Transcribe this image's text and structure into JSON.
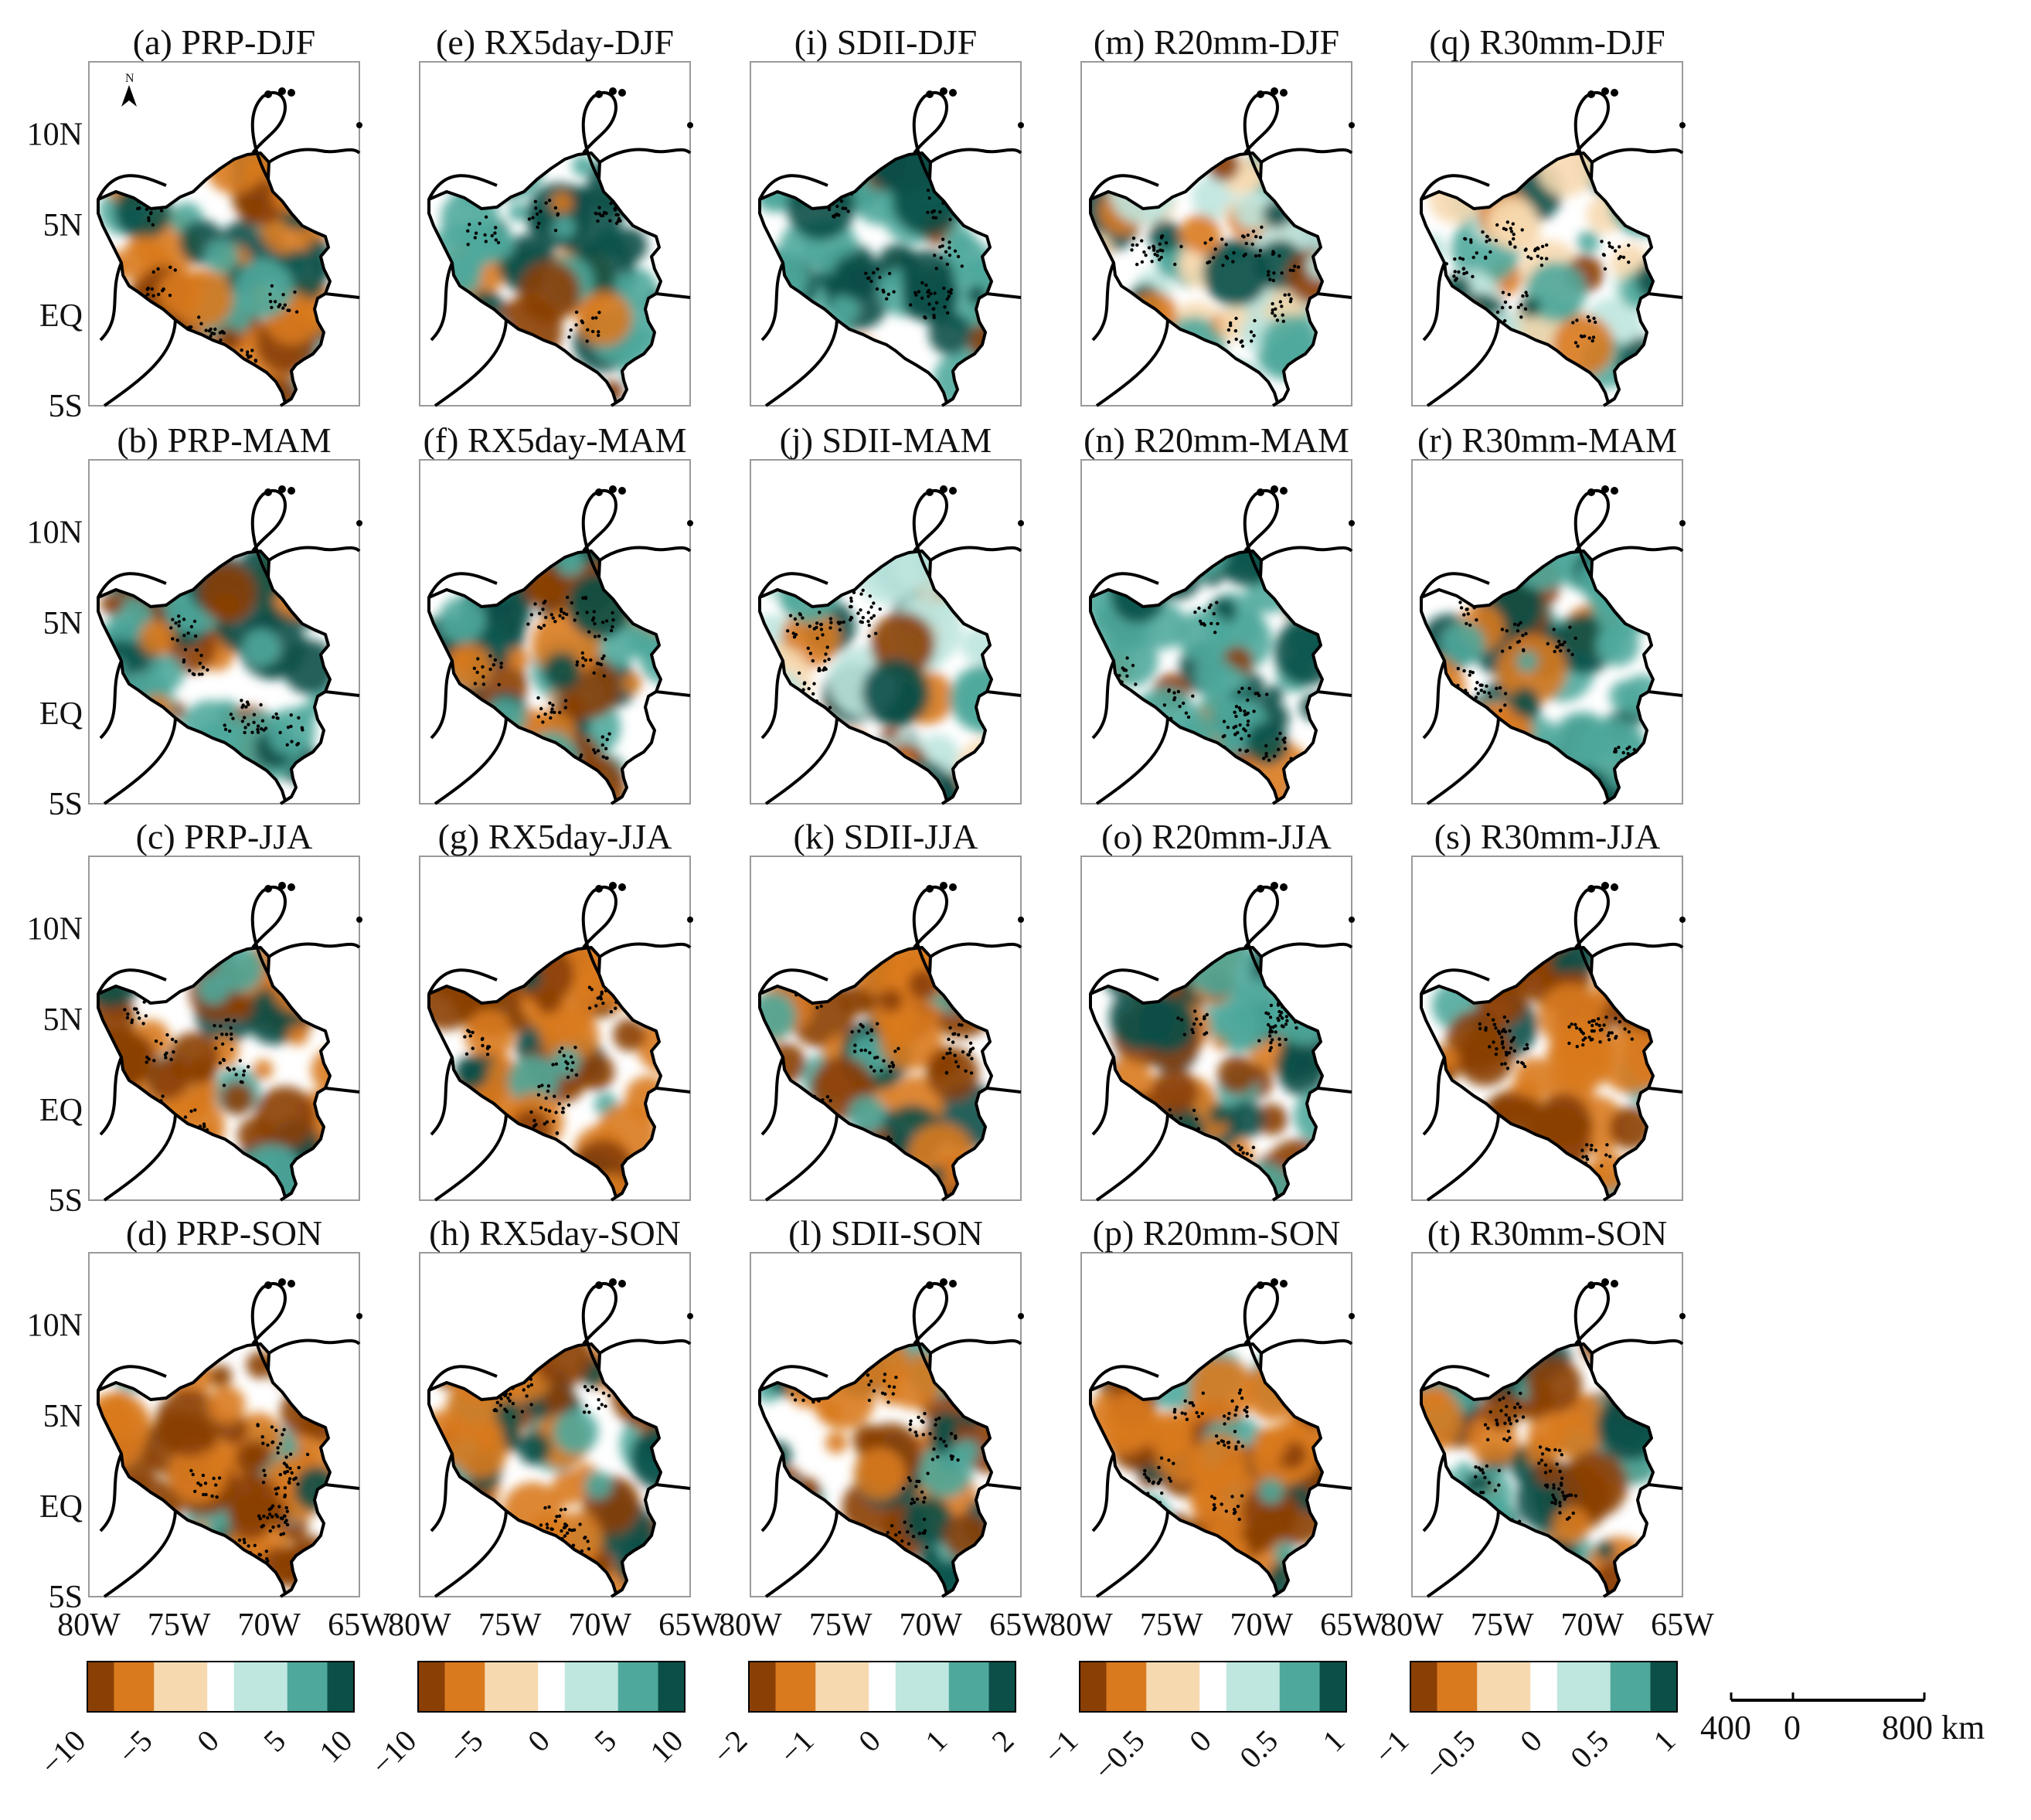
{
  "chart_data": {
    "type": "heatmap",
    "description_type": "small-multiple map grid of seasonal trends",
    "rows": [
      "DJF",
      "MAM",
      "JJA",
      "SON"
    ],
    "columns": [
      {
        "index": "PRP",
        "colorbar": {
          "min": -10,
          "max": 10,
          "ticks": [
            "-10",
            "-5",
            "0",
            "5",
            "10"
          ]
        },
        "panels": [
          "(a) PRP-DJF",
          "(b) PRP-MAM",
          "(c) PRP-JJA",
          "(d) PRP-SON"
        ],
        "dominant_sign": [
          "mixed, positive west",
          "positive",
          "negative",
          "negative"
        ]
      },
      {
        "index": "RX5day",
        "colorbar": {
          "min": -10,
          "max": 10,
          "ticks": [
            "-10",
            "-5",
            "0",
            "5",
            "10"
          ]
        },
        "panels": [
          "(e) RX5day-DJF",
          "(f) RX5day-MAM",
          "(g) RX5day-JJA",
          "(h) RX5day-SON"
        ],
        "dominant_sign": [
          "positive",
          "mixed",
          "negative",
          "mixed"
        ]
      },
      {
        "index": "SDII",
        "colorbar": {
          "min": -2,
          "max": 2,
          "ticks": [
            "-2",
            "-1",
            "0",
            "1",
            "2"
          ]
        },
        "panels": [
          "(i) SDII-DJF",
          "(j) SDII-MAM",
          "(k) SDII-JJA",
          "(l) SDII-SON"
        ],
        "dominant_sign": [
          "positive",
          "weak positive",
          "negative",
          "mixed"
        ]
      },
      {
        "index": "R20mm",
        "colorbar": {
          "min": -1,
          "max": 1,
          "ticks": [
            "-1",
            "-0.5",
            "0",
            "0.5",
            "1"
          ]
        },
        "panels": [
          "(m) R20mm-DJF",
          "(n) R20mm-MAM",
          "(o) R20mm-JJA",
          "(p) R20mm-SON"
        ],
        "dominant_sign": [
          "weak positive",
          "positive",
          "mixed",
          "negative"
        ]
      },
      {
        "index": "R30mm",
        "colorbar": {
          "min": -1,
          "max": 1,
          "ticks": [
            "-1",
            "-0.5",
            "0",
            "0.5",
            "1"
          ]
        },
        "panels": [
          "(q) R30mm-DJF",
          "(r) R30mm-MAM",
          "(s) R30mm-JJA",
          "(t) R30mm-SON"
        ],
        "dominant_sign": [
          "weak positive",
          "positive",
          "negative",
          "mixed"
        ]
      }
    ],
    "lat_ticks": [
      "10N",
      "5N",
      "EQ",
      "5S"
    ],
    "lat_values": [
      10,
      5,
      0,
      -5
    ],
    "lon_ticks": [
      "80W",
      "75W",
      "70W",
      "65W"
    ],
    "lon_values": [
      -80,
      -75,
      -70,
      -65
    ],
    "lat_range": [
      -5,
      14
    ],
    "lon_range": [
      -80,
      -65
    ],
    "north_arrow_label": "N",
    "scale_bar": {
      "labels": [
        "400",
        "0",
        "800 km"
      ]
    },
    "significance": "stippled dots mark statistically significant trends",
    "colors": {
      "negative_dark": "#8a3f05",
      "negative_mid": "#d97a1f",
      "negative_light": "#f7d9b0",
      "zero": "#ffffff",
      "positive_light": "#bfe6df",
      "positive_mid": "#4fa89c",
      "positive_dark": "#0b4f48",
      "coastline": "#000000"
    }
  }
}
